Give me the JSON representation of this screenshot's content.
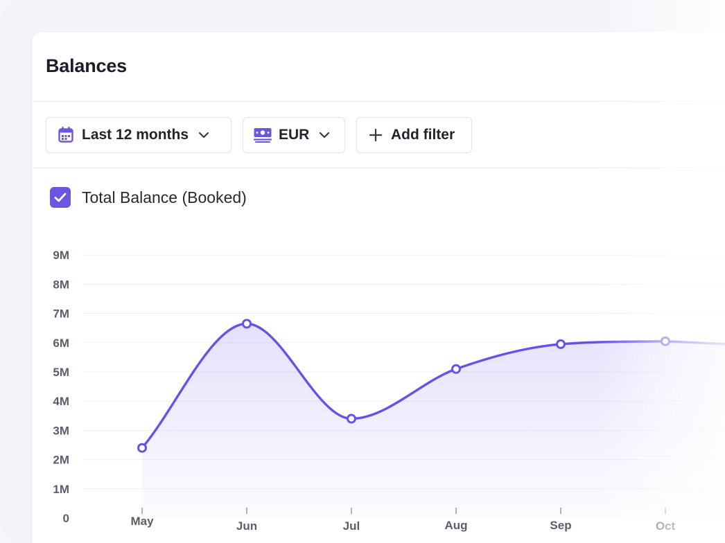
{
  "card": {
    "title": "Balances"
  },
  "filters": {
    "period": {
      "label": "Last 12 months",
      "icon": "calendar-icon"
    },
    "currency": {
      "label": "EUR",
      "icon": "banknote-icon"
    },
    "add": {
      "label": "Add filter",
      "icon": "plus-icon"
    }
  },
  "colors": {
    "accent": "#6a56e2",
    "line": "#6552e6",
    "tick_text": "#5e5c6c",
    "grid": "#f0eff5"
  },
  "chart_data": {
    "type": "area",
    "categories": [
      "May",
      "Jun",
      "Jul",
      "Aug",
      "Sep",
      "Oct"
    ],
    "series": [
      {
        "name": "Total Balance (Booked)",
        "values": [
          2.4,
          6.65,
          3.4,
          5.1,
          5.95,
          6.05
        ],
        "checked": true
      }
    ],
    "y_ticks": [
      "0",
      "1M",
      "2M",
      "3M",
      "4M",
      "5M",
      "6M",
      "7M",
      "8M",
      "9M"
    ],
    "ylim": [
      0,
      9
    ],
    "grid": true,
    "legend_position": "top-left"
  }
}
